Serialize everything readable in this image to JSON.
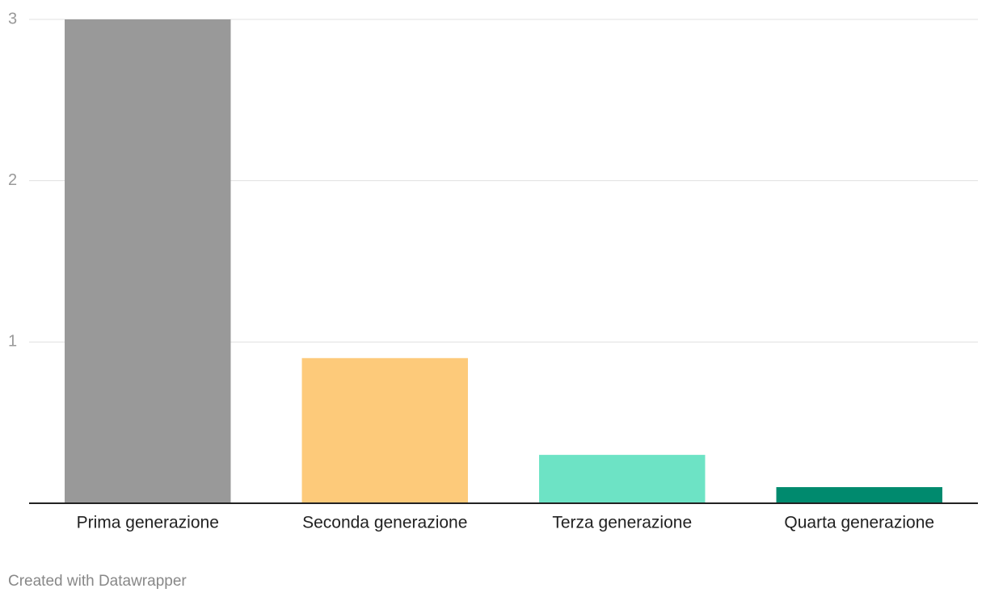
{
  "chart_data": {
    "type": "bar",
    "categories": [
      "Prima generazione",
      "Seconda generazione",
      "Terza generazione",
      "Quarta generazione"
    ],
    "values": [
      3,
      0.9,
      0.3,
      0.1
    ],
    "colors": [
      "#999999",
      "#fdca7a",
      "#6de3c5",
      "#008a6e"
    ],
    "ylim": [
      0,
      3
    ],
    "yticks": [
      1,
      2,
      3
    ],
    "grid": true,
    "credit": "Created with Datawrapper"
  }
}
